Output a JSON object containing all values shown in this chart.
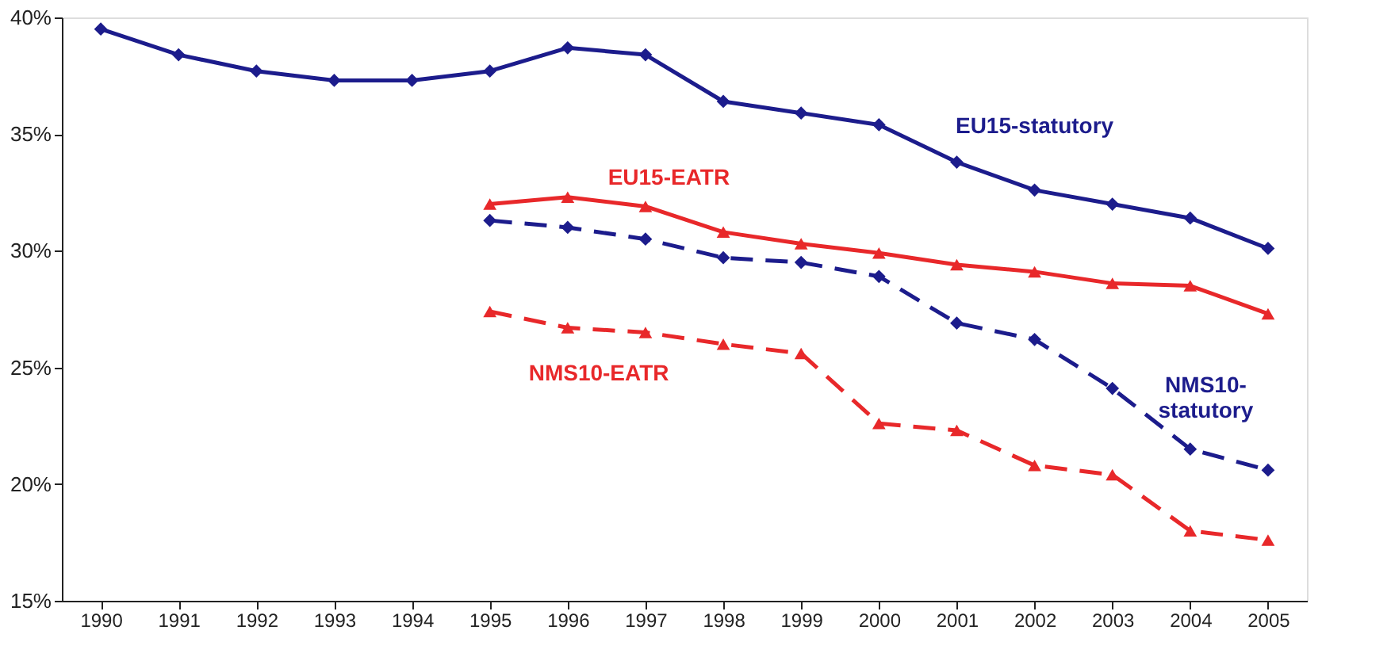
{
  "chart_data": {
    "type": "line",
    "categories": [
      "1990",
      "1991",
      "1992",
      "1993",
      "1994",
      "1995",
      "1996",
      "1997",
      "1998",
      "1999",
      "2000",
      "2001",
      "2002",
      "2003",
      "2004",
      "2005"
    ],
    "ylim": [
      15,
      40
    ],
    "yticks": [
      {
        "value": 15,
        "label": "15%"
      },
      {
        "value": 20,
        "label": "20%"
      },
      {
        "value": 25,
        "label": "25%"
      },
      {
        "value": 30,
        "label": "30%"
      },
      {
        "value": 35,
        "label": "35%"
      },
      {
        "value": 40,
        "label": "40%"
      }
    ],
    "series": [
      {
        "name": "EU15-statutory",
        "color": "#1c1c8c",
        "marker": "diamond",
        "line_style": "solid",
        "values": [
          39.5,
          38.4,
          37.7,
          37.3,
          37.3,
          37.7,
          38.7,
          38.4,
          36.4,
          35.9,
          35.4,
          33.8,
          32.6,
          32.0,
          31.4,
          30.1
        ]
      },
      {
        "name": "EU15-EATR",
        "color": "#e8282a",
        "marker": "triangle",
        "line_style": "solid",
        "values": [
          null,
          null,
          null,
          null,
          null,
          32.0,
          32.3,
          31.9,
          30.8,
          30.3,
          29.9,
          29.4,
          29.1,
          28.6,
          28.5,
          27.3
        ]
      },
      {
        "name": "NMS10-statutory",
        "color": "#1c1c8c",
        "marker": "diamond",
        "line_style": "dashed",
        "values": [
          null,
          null,
          null,
          null,
          null,
          31.3,
          31.0,
          30.5,
          29.7,
          29.5,
          28.9,
          26.9,
          26.2,
          24.1,
          21.5,
          20.6
        ]
      },
      {
        "name": "NMS10-EATR",
        "color": "#e8282a",
        "marker": "triangle",
        "line_style": "dashed",
        "values": [
          null,
          null,
          null,
          null,
          null,
          27.4,
          26.7,
          26.5,
          26.0,
          25.6,
          22.6,
          22.3,
          20.8,
          20.4,
          18.0,
          17.6
        ]
      }
    ]
  }
}
